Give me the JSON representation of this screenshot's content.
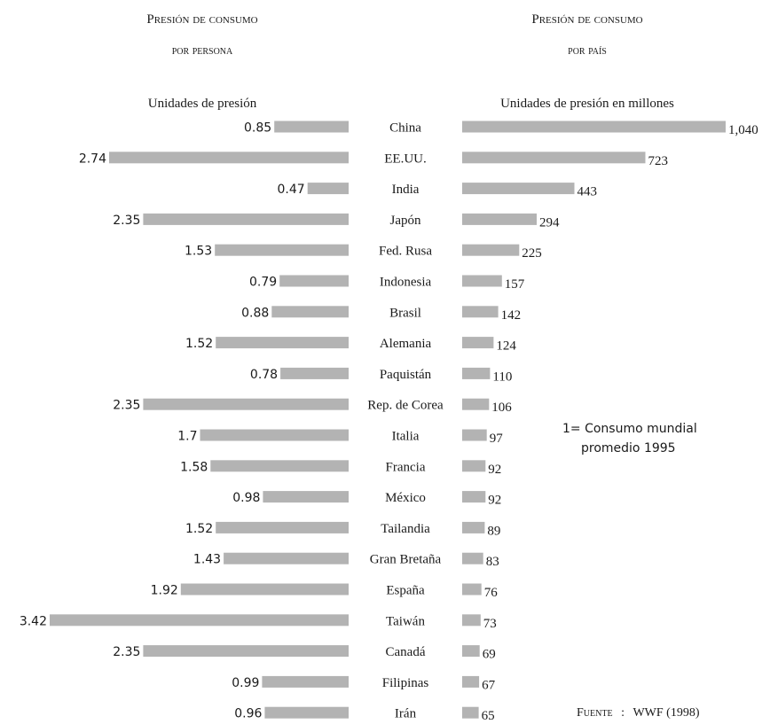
{
  "chart_data": [
    {
      "type": "bar",
      "orientation": "horizontal",
      "title_main": "Presión de consumo",
      "title_sub": "por persona",
      "ylabel": "Unidades de presión",
      "categories": [
        "China",
        "EE.UU.",
        "India",
        "Japón",
        "Fed. Rusa",
        "Indonesia",
        "Brasil",
        "Alemania",
        "Paquistán",
        "Rep. de Corea",
        "Italia",
        "Francia",
        "México",
        "Tailandia",
        "Gran Bretaña",
        "España",
        "Taiwán",
        "Canadá",
        "Filipinas",
        "Irán"
      ],
      "values": [
        0.85,
        2.74,
        0.47,
        2.35,
        1.53,
        0.79,
        0.88,
        1.52,
        0.78,
        2.35,
        1.7,
        1.58,
        0.98,
        1.52,
        1.43,
        1.92,
        3.42,
        2.35,
        0.99,
        0.96
      ],
      "value_labels": [
        "0.85",
        "2.74",
        "0.47",
        "2.35",
        "1.53",
        "0.79",
        "0.88",
        "1.52",
        "0.78",
        "2.35",
        "1.7",
        "1.58",
        "0.98",
        "1.52",
        "1.43",
        "1.92",
        "3.42",
        "2.35",
        "0.99",
        "0.96"
      ],
      "xlim": [
        0,
        3.42
      ],
      "grid": false
    },
    {
      "type": "bar",
      "orientation": "horizontal",
      "title_main": "Presión de consumo",
      "title_sub": "por país",
      "ylabel": "Unidades de presión en millones",
      "categories": [
        "China",
        "EE.UU.",
        "India",
        "Japón",
        "Fed. Rusa",
        "Indonesia",
        "Brasil",
        "Alemania",
        "Paquistán",
        "Rep. de Corea",
        "Italia",
        "Francia",
        "México",
        "Tailandia",
        "Gran Bretaña",
        "España",
        "Taiwán",
        "Canadá",
        "Filipinas",
        "Irán"
      ],
      "values": [
        1040,
        723,
        443,
        294,
        225,
        157,
        142,
        124,
        110,
        106,
        97,
        92,
        92,
        89,
        83,
        76,
        73,
        69,
        67,
        65
      ],
      "value_labels": [
        "1,040",
        "723",
        "443",
        "294",
        "225",
        "157",
        "142",
        "124",
        "110",
        "106",
        "97",
        "92",
        "92",
        "89",
        "83",
        "76",
        "73",
        "69",
        "67",
        "65"
      ],
      "xlim": [
        0,
        1040
      ],
      "grid": false
    }
  ],
  "note": {
    "line1": "1= Consumo mundial",
    "line2": "promedio 1995"
  },
  "source": {
    "label": "Fuente",
    "separator": ":",
    "text": "WWF (1998)"
  },
  "colors": {
    "bar": "#b3b3b3",
    "text": "#1a1a1a"
  }
}
